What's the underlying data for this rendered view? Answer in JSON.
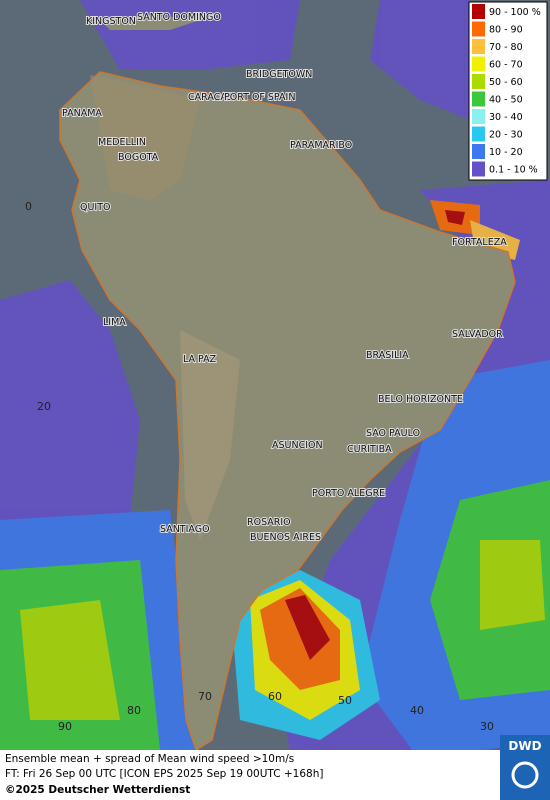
{
  "legend": [
    {
      "label": "90 - 100 %",
      "color": "#b40000"
    },
    {
      "label": "80 - 90",
      "color": "#ff6a00"
    },
    {
      "label": "70 - 80",
      "color": "#ffbe3c"
    },
    {
      "label": "60 - 70",
      "color": "#f0f000"
    },
    {
      "label": "50 - 60",
      "color": "#aadc00"
    },
    {
      "label": "40 - 50",
      "color": "#3cc83c"
    },
    {
      "label": "30 - 40",
      "color": "#8cf0f0"
    },
    {
      "label": "20 - 30",
      "color": "#28c8f0"
    },
    {
      "label": "10 - 20",
      "color": "#3c78f0"
    },
    {
      "label": "0.1 - 10 %",
      "color": "#6450c8"
    }
  ],
  "cities": [
    "KINGSTON",
    "SANTO DOMINGO",
    "BRIDGETOWN",
    "CARACAS",
    "PORT OF SPAIN",
    "PANAMA",
    "MEDELLIN",
    "BOGOTA",
    "PARAMARIBO",
    "QUITO",
    "FORTALEZA",
    "LIMA",
    "SALVADOR",
    "LA PAZ",
    "BRASILIA",
    "BELO HORIZONTE",
    "ASUNCION",
    "SAO PAULO",
    "CURITIBA",
    "PORTO ALEGRE",
    "ROSARIO",
    "SANTIAGO",
    "BUENOS AIRES"
  ],
  "lat_labels": [
    0,
    20
  ],
  "lon_labels": [
    90,
    80,
    70,
    60,
    50,
    40,
    30
  ],
  "caption": {
    "line1": "Ensemble mean + spread of Mean wind speed >10m/s",
    "line2": "FT: Fri 26 Sep 00 UTC [ICON EPS 2025 Sep 19 00UTC +168h]",
    "copyright": "©2025 Deutscher Wetterdienst"
  },
  "logo": "DWD"
}
